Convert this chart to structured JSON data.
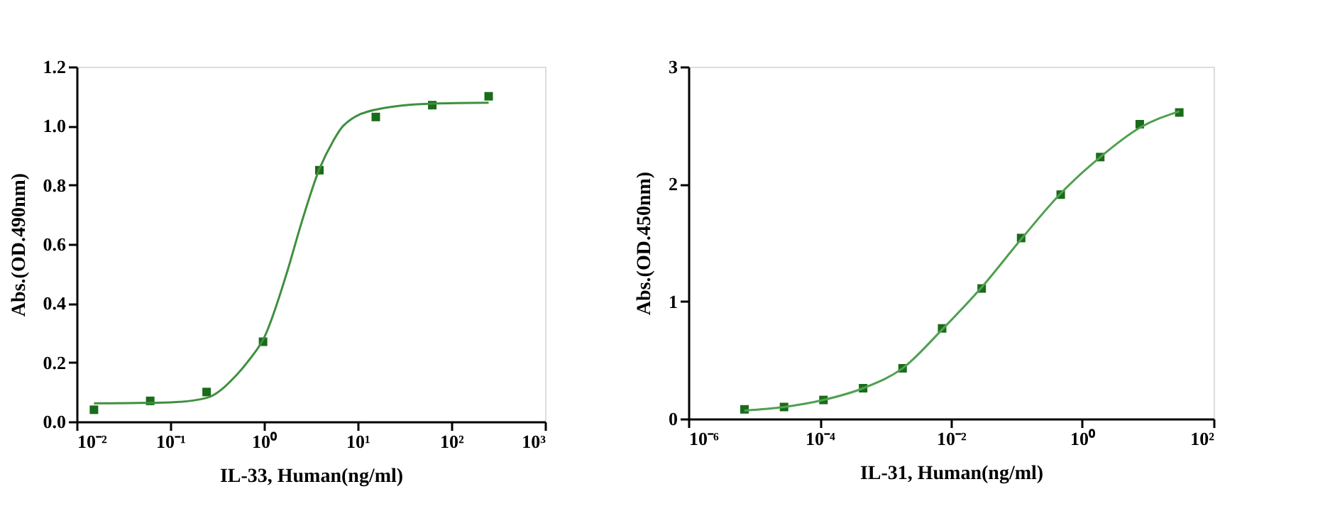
{
  "chart_data": [
    {
      "type": "scatter",
      "xlabel": "IL-33, Human(ng/ml)",
      "ylabel": "Abs.(OD.490nm)",
      "log": "x",
      "grid": false,
      "xlim": [
        0.01,
        1000
      ],
      "xticks": [
        {
          "value": 0.01,
          "label": "10⁻²"
        },
        {
          "value": 0.1,
          "label": "10⁻¹"
        },
        {
          "value": 1,
          "label": "10⁰"
        },
        {
          "value": 10,
          "label": "10¹"
        },
        {
          "value": 100,
          "label": "10²"
        },
        {
          "value": 1000,
          "label": "10³"
        }
      ],
      "ylim": [
        0,
        1.2
      ],
      "yticks": [
        {
          "value": 0,
          "label": "0.0"
        },
        {
          "value": 0.2,
          "label": "0.2"
        },
        {
          "value": 0.4,
          "label": "0.4"
        },
        {
          "value": 0.6,
          "label": "0.6"
        },
        {
          "value": 0.8,
          "label": "0.8"
        },
        {
          "value": 1,
          "label": "1.0"
        },
        {
          "value": 1.2,
          "label": "1.2"
        }
      ],
      "series": [
        {
          "marker": "square",
          "color": "#1a6b1a",
          "x": [
            0.0153,
            0.061,
            0.244,
            0.977,
            3.9,
            15.6,
            62.5,
            250
          ],
          "values": [
            0.04,
            0.07,
            0.1,
            0.27,
            0.85,
            1.03,
            1.07,
            1.1
          ]
        },
        {
          "type": "line",
          "marker": "none",
          "line_style": "solid",
          "color": "#3f8f3f",
          "x": [
            0.0153,
            0.1,
            0.244,
            0.5,
            0.7,
            1.0,
            1.78,
            2.5,
            3.9,
            5.5,
            7,
            15.6,
            62.5,
            250
          ],
          "values": [
            0.062,
            0.065,
            0.08,
            0.155,
            0.21,
            0.283,
            0.51,
            0.67,
            0.854,
            0.95,
            1.0,
            1.055,
            1.075,
            1.078
          ]
        }
      ]
    },
    {
      "type": "scatter",
      "xlabel": "IL-31, Human(ng/ml)",
      "ylabel": "Abs.(OD.450nm)",
      "log": "x",
      "grid": false,
      "xlim": [
        1e-06,
        100
      ],
      "xticks": [
        {
          "value": 1e-06,
          "label": "10⁻⁶"
        },
        {
          "value": 0.0001,
          "label": "10⁻⁴"
        },
        {
          "value": 0.01,
          "label": "10⁻²"
        },
        {
          "value": 1,
          "label": "10⁰"
        },
        {
          "value": 100,
          "label": "10²"
        }
      ],
      "ylim": [
        0,
        3
      ],
      "yticks": [
        0,
        1,
        2,
        3
      ],
      "series": [
        {
          "marker": "square",
          "color": "#1a6b1a",
          "x": [
            7.15e-06,
            2.86e-05,
            0.000114,
            0.000458,
            0.00183,
            0.00732,
            0.0293,
            0.117,
            0.469,
            1.875,
            7.5,
            30
          ],
          "values": [
            0.08,
            0.1,
            0.16,
            0.26,
            0.43,
            0.77,
            1.11,
            1.54,
            1.91,
            2.23,
            2.51,
            2.61
          ]
        },
        {
          "type": "line",
          "marker": "none",
          "line_style": "solid",
          "color": "#4fa04f",
          "x": [
            7.15e-06,
            2.86e-05,
            0.000114,
            0.000458,
            0.00183,
            0.00732,
            0.0293,
            0.117,
            0.469,
            1.875,
            7.5,
            30
          ],
          "values": [
            0.07,
            0.1,
            0.16,
            0.26,
            0.43,
            0.76,
            1.12,
            1.53,
            1.92,
            2.23,
            2.48,
            2.62
          ]
        }
      ]
    }
  ]
}
